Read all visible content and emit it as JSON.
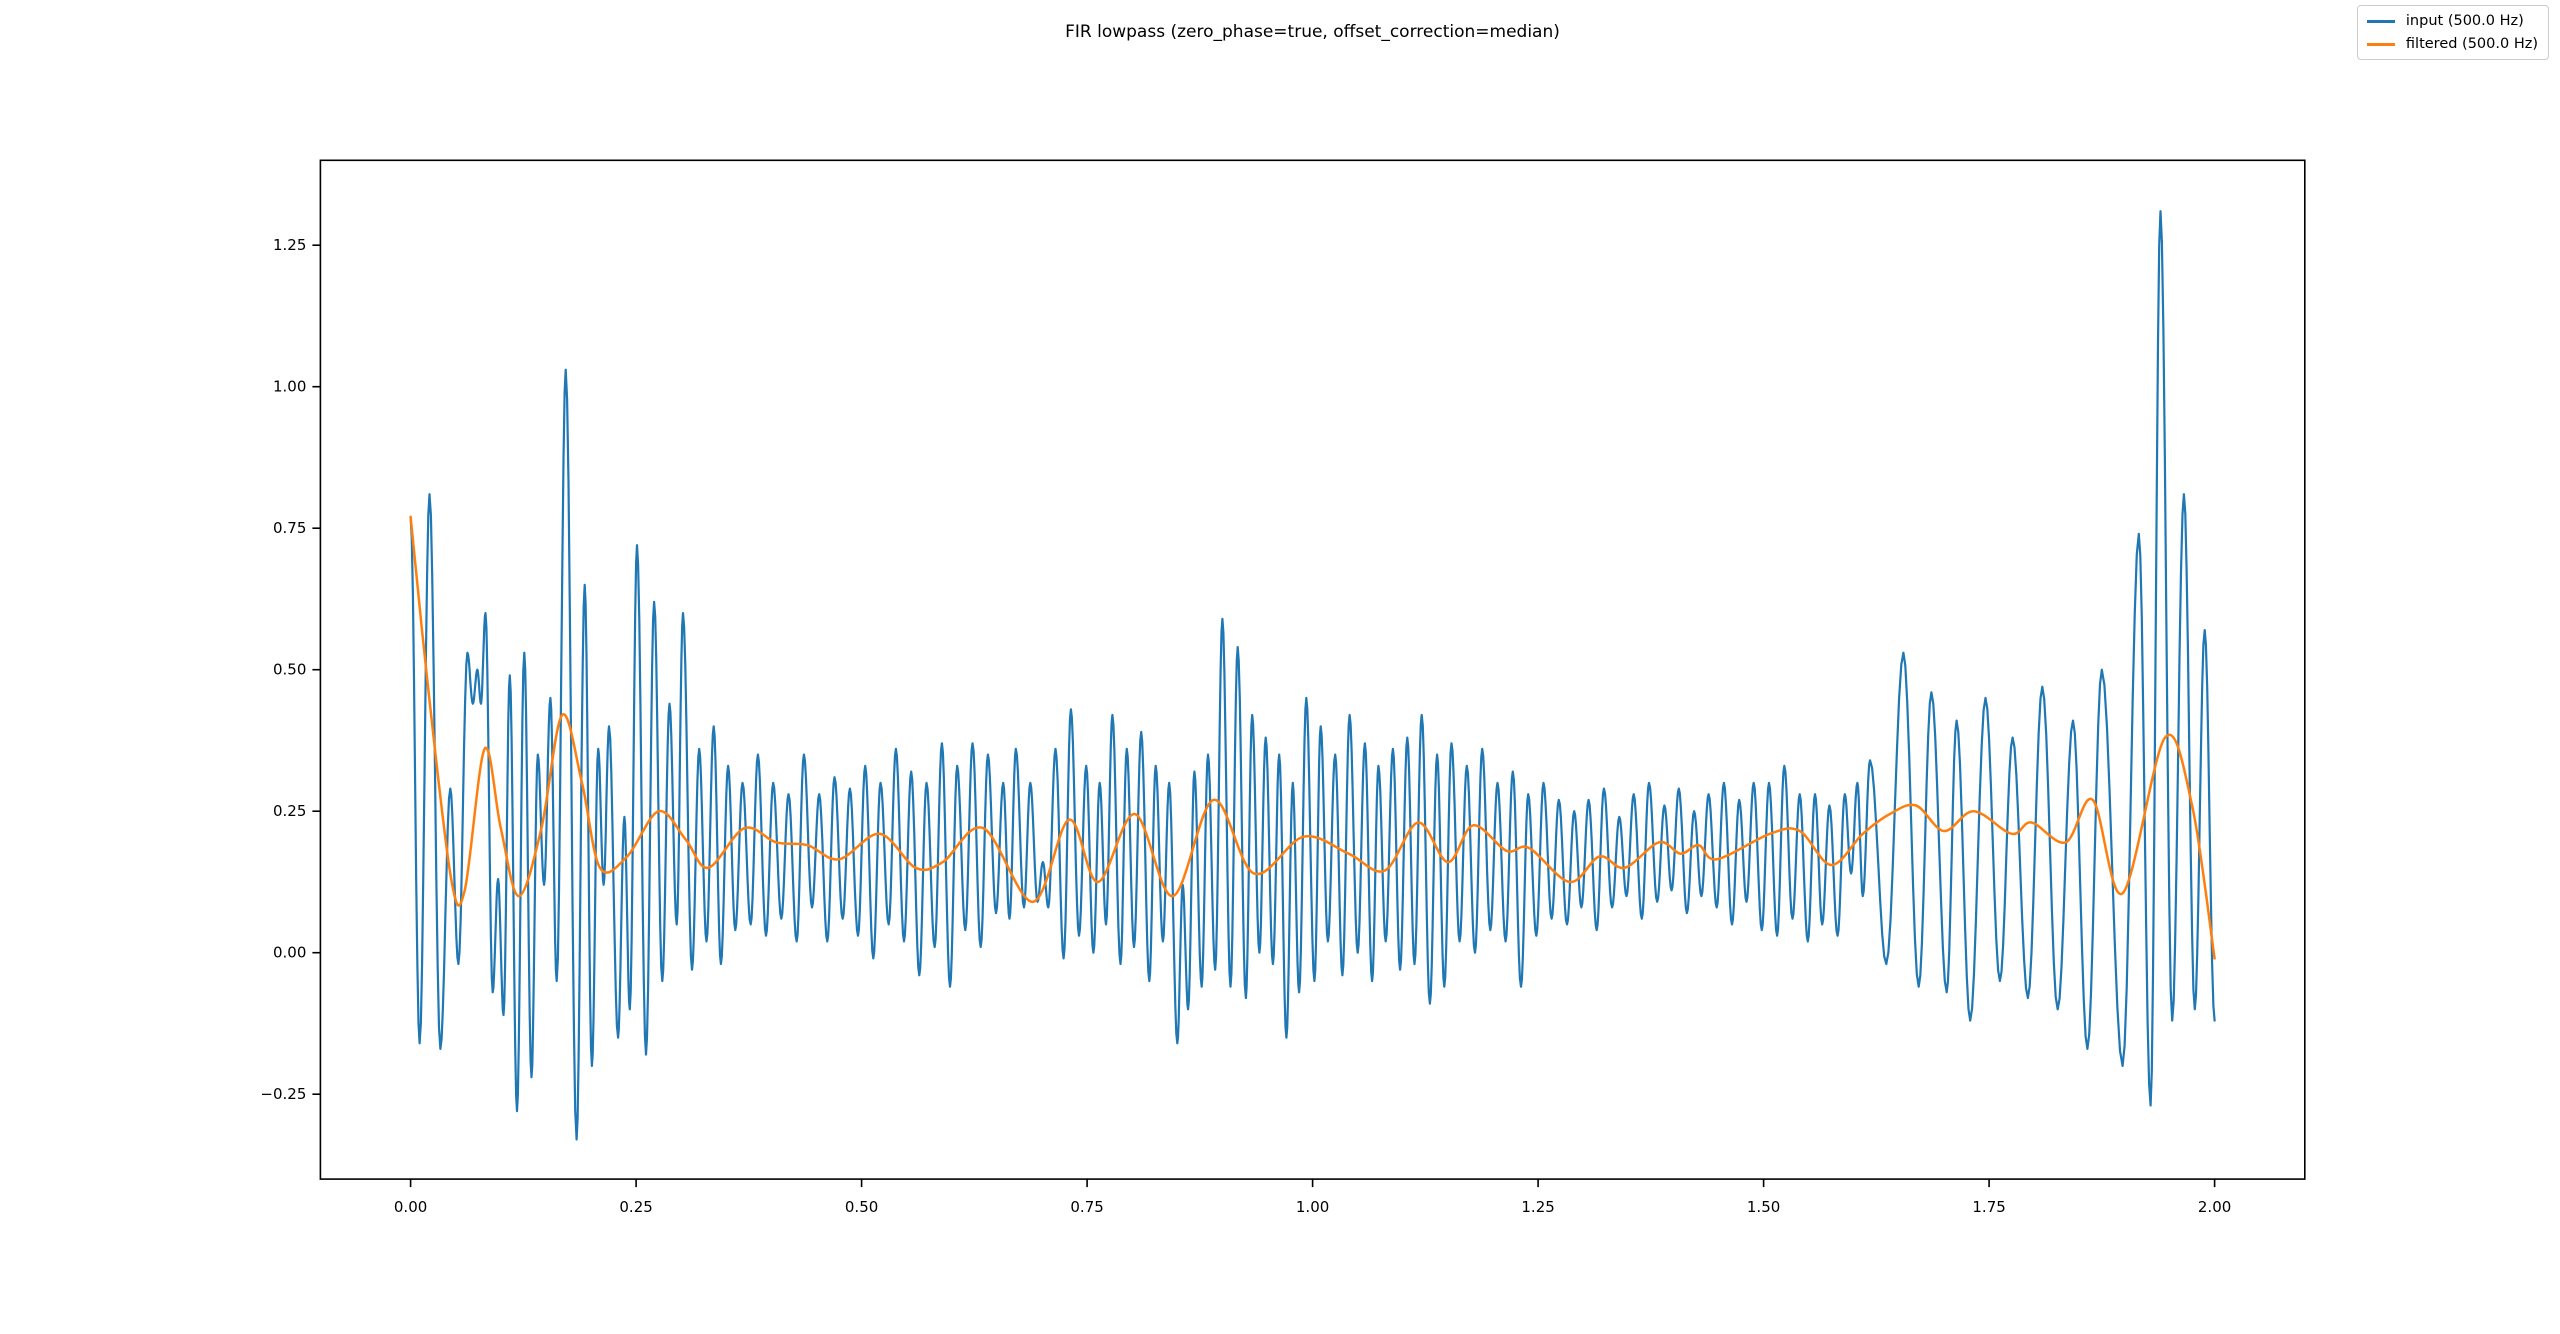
{
  "chart_data": {
    "type": "line",
    "title": "FIR lowpass (zero_phase=true, offset_correction=median)",
    "xlabel": "",
    "ylabel": "",
    "xlim": [
      -0.1,
      2.1
    ],
    "ylim": [
      -0.4,
      1.4
    ],
    "xticks": [
      0.0,
      0.25,
      0.5,
      0.75,
      1.0,
      1.25,
      1.5,
      1.75,
      2.0
    ],
    "xtick_labels": [
      "0.00",
      "0.25",
      "0.50",
      "0.75",
      "1.00",
      "1.25",
      "1.50",
      "1.75",
      "2.00"
    ],
    "yticks": [
      -0.25,
      0.0,
      0.25,
      0.5,
      0.75,
      1.0,
      1.25
    ],
    "ytick_labels": [
      "−0.25",
      "0.00",
      "0.25",
      "0.50",
      "0.75",
      "1.00",
      "1.25"
    ],
    "grid": false,
    "legend_position": "upper-right-of-figure",
    "sample_rate_label_hz": 500.0,
    "duration_s": 2.0,
    "series": [
      {
        "name": "input (500.0 Hz)",
        "color": "#1f77b4",
        "line_width": 2.2,
        "interpolation": "cosine-through-extrema",
        "points": [
          [
            0.0,
            0.77
          ],
          [
            0.01,
            -0.16
          ],
          [
            0.021,
            0.81
          ],
          [
            0.033,
            -0.17
          ],
          [
            0.044,
            0.29
          ],
          [
            0.053,
            -0.02
          ],
          [
            0.063,
            0.53
          ],
          [
            0.069,
            0.44
          ],
          [
            0.074,
            0.5
          ],
          [
            0.078,
            0.44
          ],
          [
            0.083,
            0.6
          ],
          [
            0.091,
            -0.07
          ],
          [
            0.097,
            0.13
          ],
          [
            0.103,
            -0.11
          ],
          [
            0.11,
            0.49
          ],
          [
            0.118,
            -0.28
          ],
          [
            0.126,
            0.53
          ],
          [
            0.134,
            -0.22
          ],
          [
            0.141,
            0.35
          ],
          [
            0.148,
            0.12
          ],
          [
            0.155,
            0.45
          ],
          [
            0.162,
            -0.05
          ],
          [
            0.172,
            1.03
          ],
          [
            0.184,
            -0.33
          ],
          [
            0.193,
            0.65
          ],
          [
            0.201,
            -0.2
          ],
          [
            0.208,
            0.36
          ],
          [
            0.214,
            0.12
          ],
          [
            0.22,
            0.4
          ],
          [
            0.23,
            -0.15
          ],
          [
            0.237,
            0.24
          ],
          [
            0.243,
            -0.1
          ],
          [
            0.251,
            0.72
          ],
          [
            0.261,
            -0.18
          ],
          [
            0.27,
            0.62
          ],
          [
            0.279,
            -0.05
          ],
          [
            0.287,
            0.44
          ],
          [
            0.295,
            0.05
          ],
          [
            0.302,
            0.6
          ],
          [
            0.312,
            -0.03
          ],
          [
            0.32,
            0.36
          ],
          [
            0.328,
            0.02
          ],
          [
            0.336,
            0.4
          ],
          [
            0.344,
            -0.02
          ],
          [
            0.352,
            0.33
          ],
          [
            0.36,
            0.04
          ],
          [
            0.368,
            0.3
          ],
          [
            0.377,
            0.05
          ],
          [
            0.385,
            0.35
          ],
          [
            0.394,
            0.03
          ],
          [
            0.402,
            0.3
          ],
          [
            0.411,
            0.06
          ],
          [
            0.419,
            0.28
          ],
          [
            0.428,
            0.02
          ],
          [
            0.436,
            0.35
          ],
          [
            0.445,
            0.08
          ],
          [
            0.453,
            0.28
          ],
          [
            0.462,
            0.02
          ],
          [
            0.47,
            0.31
          ],
          [
            0.479,
            0.06
          ],
          [
            0.487,
            0.29
          ],
          [
            0.496,
            0.03
          ],
          [
            0.504,
            0.33
          ],
          [
            0.513,
            -0.01
          ],
          [
            0.521,
            0.3
          ],
          [
            0.53,
            0.05
          ],
          [
            0.538,
            0.36
          ],
          [
            0.547,
            0.02
          ],
          [
            0.555,
            0.32
          ],
          [
            0.564,
            -0.04
          ],
          [
            0.572,
            0.3
          ],
          [
            0.581,
            0.01
          ],
          [
            0.589,
            0.37
          ],
          [
            0.598,
            -0.06
          ],
          [
            0.606,
            0.33
          ],
          [
            0.615,
            0.04
          ],
          [
            0.623,
            0.37
          ],
          [
            0.632,
            0.01
          ],
          [
            0.64,
            0.35
          ],
          [
            0.649,
            0.07
          ],
          [
            0.657,
            0.3
          ],
          [
            0.664,
            0.06
          ],
          [
            0.671,
            0.36
          ],
          [
            0.68,
            0.08
          ],
          [
            0.687,
            0.3
          ],
          [
            0.695,
            0.09
          ],
          [
            0.701,
            0.16
          ],
          [
            0.707,
            0.08
          ],
          [
            0.715,
            0.36
          ],
          [
            0.724,
            -0.01
          ],
          [
            0.732,
            0.43
          ],
          [
            0.741,
            0.03
          ],
          [
            0.749,
            0.33
          ],
          [
            0.757,
            0.0
          ],
          [
            0.764,
            0.3
          ],
          [
            0.771,
            0.05
          ],
          [
            0.778,
            0.42
          ],
          [
            0.787,
            -0.02
          ],
          [
            0.794,
            0.36
          ],
          [
            0.802,
            0.01
          ],
          [
            0.81,
            0.39
          ],
          [
            0.819,
            -0.05
          ],
          [
            0.826,
            0.33
          ],
          [
            0.834,
            0.02
          ],
          [
            0.841,
            0.3
          ],
          [
            0.85,
            -0.16
          ],
          [
            0.856,
            0.12
          ],
          [
            0.862,
            -0.1
          ],
          [
            0.869,
            0.32
          ],
          [
            0.877,
            -0.06
          ],
          [
            0.884,
            0.35
          ],
          [
            0.892,
            -0.03
          ],
          [
            0.9,
            0.59
          ],
          [
            0.909,
            -0.06
          ],
          [
            0.917,
            0.54
          ],
          [
            0.926,
            -0.08
          ],
          [
            0.933,
            0.42
          ],
          [
            0.941,
            0.0
          ],
          [
            0.948,
            0.38
          ],
          [
            0.956,
            -0.02
          ],
          [
            0.963,
            0.35
          ],
          [
            0.971,
            -0.15
          ],
          [
            0.978,
            0.3
          ],
          [
            0.985,
            -0.07
          ],
          [
            0.993,
            0.45
          ],
          [
            1.002,
            -0.05
          ],
          [
            1.009,
            0.4
          ],
          [
            1.017,
            0.02
          ],
          [
            1.025,
            0.35
          ],
          [
            1.033,
            -0.04
          ],
          [
            1.041,
            0.42
          ],
          [
            1.05,
            0.0
          ],
          [
            1.058,
            0.37
          ],
          [
            1.066,
            -0.05
          ],
          [
            1.073,
            0.33
          ],
          [
            1.081,
            0.02
          ],
          [
            1.089,
            0.36
          ],
          [
            1.097,
            -0.03
          ],
          [
            1.105,
            0.38
          ],
          [
            1.113,
            -0.02
          ],
          [
            1.121,
            0.42
          ],
          [
            1.13,
            -0.09
          ],
          [
            1.138,
            0.35
          ],
          [
            1.146,
            -0.06
          ],
          [
            1.154,
            0.37
          ],
          [
            1.163,
            0.02
          ],
          [
            1.171,
            0.33
          ],
          [
            1.18,
            0.0
          ],
          [
            1.188,
            0.36
          ],
          [
            1.197,
            0.04
          ],
          [
            1.205,
            0.3
          ],
          [
            1.214,
            0.02
          ],
          [
            1.222,
            0.32
          ],
          [
            1.231,
            -0.06
          ],
          [
            1.239,
            0.28
          ],
          [
            1.248,
            0.03
          ],
          [
            1.256,
            0.3
          ],
          [
            1.265,
            0.06
          ],
          [
            1.273,
            0.27
          ],
          [
            1.282,
            0.05
          ],
          [
            1.29,
            0.25
          ],
          [
            1.298,
            0.08
          ],
          [
            1.306,
            0.27
          ],
          [
            1.315,
            0.04
          ],
          [
            1.323,
            0.29
          ],
          [
            1.332,
            0.08
          ],
          [
            1.34,
            0.24
          ],
          [
            1.348,
            0.1
          ],
          [
            1.356,
            0.28
          ],
          [
            1.365,
            0.06
          ],
          [
            1.373,
            0.3
          ],
          [
            1.382,
            0.09
          ],
          [
            1.39,
            0.26
          ],
          [
            1.398,
            0.11
          ],
          [
            1.406,
            0.29
          ],
          [
            1.415,
            0.07
          ],
          [
            1.423,
            0.25
          ],
          [
            1.431,
            0.1
          ],
          [
            1.439,
            0.28
          ],
          [
            1.448,
            0.08
          ],
          [
            1.456,
            0.3
          ],
          [
            1.465,
            0.05
          ],
          [
            1.473,
            0.27
          ],
          [
            1.481,
            0.09
          ],
          [
            1.489,
            0.3
          ],
          [
            1.498,
            0.04
          ],
          [
            1.506,
            0.3
          ],
          [
            1.515,
            0.03
          ],
          [
            1.523,
            0.33
          ],
          [
            1.532,
            0.06
          ],
          [
            1.54,
            0.28
          ],
          [
            1.549,
            0.02
          ],
          [
            1.557,
            0.28
          ],
          [
            1.565,
            0.05
          ],
          [
            1.573,
            0.26
          ],
          [
            1.582,
            0.03
          ],
          [
            1.59,
            0.28
          ],
          [
            1.597,
            0.14
          ],
          [
            1.604,
            0.3
          ],
          [
            1.61,
            0.1
          ],
          [
            1.618,
            0.34
          ],
          [
            1.636,
            -0.02
          ],
          [
            1.655,
            0.53
          ],
          [
            1.672,
            -0.06
          ],
          [
            1.686,
            0.46
          ],
          [
            1.703,
            -0.07
          ],
          [
            1.714,
            0.41
          ],
          [
            1.729,
            -0.12
          ],
          [
            1.746,
            0.45
          ],
          [
            1.762,
            -0.05
          ],
          [
            1.776,
            0.38
          ],
          [
            1.793,
            -0.08
          ],
          [
            1.809,
            0.47
          ],
          [
            1.826,
            -0.1
          ],
          [
            1.843,
            0.41
          ],
          [
            1.859,
            -0.17
          ],
          [
            1.875,
            0.5
          ],
          [
            1.898,
            -0.2
          ],
          [
            1.916,
            0.74
          ],
          [
            1.929,
            -0.27
          ],
          [
            1.94,
            1.31
          ],
          [
            1.953,
            -0.12
          ],
          [
            1.966,
            0.81
          ],
          [
            1.978,
            -0.1
          ],
          [
            1.989,
            0.57
          ],
          [
            2.0,
            -0.12
          ]
        ]
      },
      {
        "name": "filtered (500.0 Hz)",
        "color": "#ff7f0e",
        "line_width": 2.5,
        "interpolation": "smooth",
        "points": [
          [
            0.0,
            0.77
          ],
          [
            0.02,
            0.46
          ],
          [
            0.045,
            0.13
          ],
          [
            0.06,
            0.11
          ],
          [
            0.082,
            0.36
          ],
          [
            0.1,
            0.22
          ],
          [
            0.12,
            0.1
          ],
          [
            0.145,
            0.22
          ],
          [
            0.168,
            0.42
          ],
          [
            0.19,
            0.3
          ],
          [
            0.21,
            0.15
          ],
          [
            0.24,
            0.17
          ],
          [
            0.275,
            0.25
          ],
          [
            0.305,
            0.2
          ],
          [
            0.33,
            0.15
          ],
          [
            0.37,
            0.22
          ],
          [
            0.405,
            0.195
          ],
          [
            0.44,
            0.19
          ],
          [
            0.475,
            0.165
          ],
          [
            0.52,
            0.21
          ],
          [
            0.56,
            0.15
          ],
          [
            0.59,
            0.16
          ],
          [
            0.635,
            0.22
          ],
          [
            0.69,
            0.09
          ],
          [
            0.73,
            0.235
          ],
          [
            0.762,
            0.125
          ],
          [
            0.803,
            0.245
          ],
          [
            0.845,
            0.1
          ],
          [
            0.89,
            0.27
          ],
          [
            0.935,
            0.14
          ],
          [
            0.99,
            0.205
          ],
          [
            1.04,
            0.175
          ],
          [
            1.08,
            0.145
          ],
          [
            1.117,
            0.23
          ],
          [
            1.15,
            0.16
          ],
          [
            1.178,
            0.225
          ],
          [
            1.215,
            0.18
          ],
          [
            1.24,
            0.185
          ],
          [
            1.285,
            0.125
          ],
          [
            1.318,
            0.17
          ],
          [
            1.346,
            0.15
          ],
          [
            1.384,
            0.195
          ],
          [
            1.408,
            0.175
          ],
          [
            1.428,
            0.19
          ],
          [
            1.448,
            0.165
          ],
          [
            1.507,
            0.21
          ],
          [
            1.54,
            0.215
          ],
          [
            1.575,
            0.155
          ],
          [
            1.61,
            0.21
          ],
          [
            1.64,
            0.245
          ],
          [
            1.669,
            0.26
          ],
          [
            1.7,
            0.215
          ],
          [
            1.733,
            0.25
          ],
          [
            1.775,
            0.21
          ],
          [
            1.797,
            0.23
          ],
          [
            1.835,
            0.195
          ],
          [
            1.865,
            0.27
          ],
          [
            1.898,
            0.105
          ],
          [
            1.945,
            0.38
          ],
          [
            1.975,
            0.26
          ],
          [
            2.0,
            -0.01
          ]
        ]
      }
    ]
  }
}
